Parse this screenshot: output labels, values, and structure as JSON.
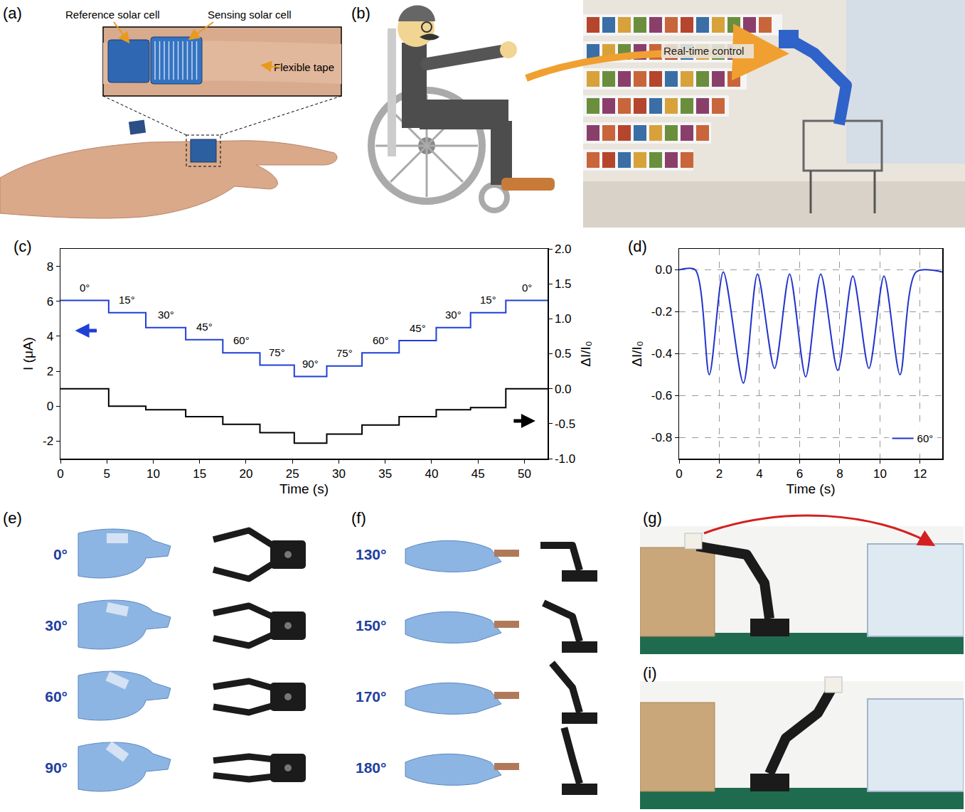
{
  "chart_data": [
    {
      "type": "line",
      "panel_label": "(c)",
      "line_style": "step",
      "x_label": "Time (s)",
      "y_label": "I (μA)",
      "y2_label": "ΔI/I₀",
      "x": [
        0,
        5.2,
        9.2,
        13.5,
        17.5,
        21.5,
        25.2,
        28.7,
        32.5,
        36.5,
        40.5,
        44.2,
        48
      ],
      "step_labels": [
        "0°",
        "15°",
        "30°",
        "45°",
        "60°",
        "75°",
        "90°",
        "75°",
        "60°",
        "45°",
        "30°",
        "15°",
        "0°"
      ],
      "series": [
        {
          "color": "#1f3fd6",
          "values": [
            6.05,
            5.35,
            4.5,
            3.8,
            3.05,
            2.35,
            1.7,
            2.3,
            3.05,
            3.75,
            4.5,
            5.35,
            6.05
          ]
        },
        {
          "color": "#000000",
          "axis": "y2",
          "values": [
            0.0,
            -0.25,
            -0.3,
            -0.4,
            -0.51,
            -0.63,
            -0.78,
            -0.65,
            -0.52,
            -0.4,
            -0.3,
            -0.27,
            0.0
          ]
        }
      ],
      "xlim": [
        0,
        52.5
      ],
      "xticks": [
        0,
        5,
        10,
        15,
        20,
        25,
        30,
        35,
        40,
        45,
        50
      ],
      "ylim": [
        -3,
        9
      ],
      "yticks": [
        -2,
        0,
        2,
        4,
        6,
        8
      ],
      "y2lim": [
        -1,
        2
      ],
      "y2ticks": [
        {
          "value": -1,
          "label": "-1.0"
        },
        -0.5,
        {
          "value": 0,
          "label": "0.0"
        },
        0.5,
        {
          "value": 1,
          "label": "1.0"
        },
        1.5,
        {
          "value": 2,
          "label": "2.0"
        }
      ],
      "grid": false
    },
    {
      "type": "line",
      "panel_label": "(d)",
      "line_style": "smooth",
      "x_label": "Time (s)",
      "y_label": "ΔI/I₀",
      "x": [
        0,
        0.8,
        1.5,
        2.2,
        3.2,
        3.9,
        4.75,
        5.5,
        6.3,
        7.05,
        7.9,
        8.65,
        9.45,
        10.2,
        11.0,
        11.8,
        13.1
      ],
      "series": [
        {
          "name": "60°",
          "color": "#2233cc",
          "values": [
            0,
            0,
            -0.5,
            -0.01,
            -0.54,
            -0.02,
            -0.47,
            -0.02,
            -0.51,
            -0.02,
            -0.48,
            -0.03,
            -0.47,
            -0.03,
            -0.5,
            -0.01,
            -0.01
          ]
        }
      ],
      "xlim": [
        0,
        13.1
      ],
      "xticks": [
        0,
        2,
        4,
        6,
        8,
        10,
        12
      ],
      "ylim": [
        -0.9,
        0.1
      ],
      "yticks": [
        {
          "value": 0,
          "label": "0.0"
        },
        -0.2,
        -0.4,
        -0.6,
        -0.8
      ],
      "grid": true,
      "legend": "lower right"
    }
  ],
  "panels": {
    "a": {
      "label": "(a)",
      "reference": "Reference solar cell",
      "sensing": "Sensing solar cell",
      "tape": "Flexible tape"
    },
    "b": {
      "label": "(b)",
      "arrow_text": "Real-time control"
    },
    "e": {
      "label": "(e)",
      "angles": [
        "0°",
        "30°",
        "60°",
        "90°"
      ]
    },
    "f": {
      "label": "(f)",
      "angles": [
        "130°",
        "150°",
        "170°",
        "180°"
      ]
    },
    "g": {
      "label": "(g)"
    },
    "i": {
      "label": "(i)"
    }
  }
}
